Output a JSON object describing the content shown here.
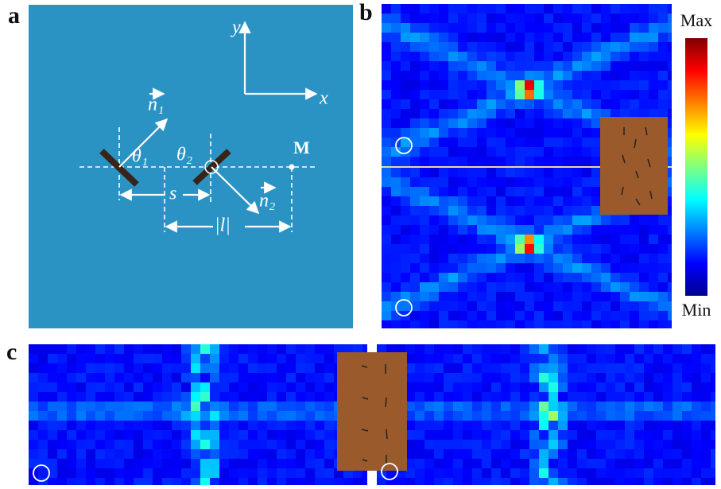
{
  "panel_a": {
    "label": "a",
    "y_axis": "y",
    "x_axis": "x",
    "normal_1": "n₁",
    "normal_2": "n₂",
    "angle_1": "θ₁",
    "angle_2": "θ₂",
    "spacing": "s",
    "distance": "|l|",
    "point": "M"
  },
  "panel_b": {
    "label": "b",
    "colorbar_max": "Max",
    "colorbar_min": "Min"
  },
  "panel_c": {
    "label": "c"
  }
}
